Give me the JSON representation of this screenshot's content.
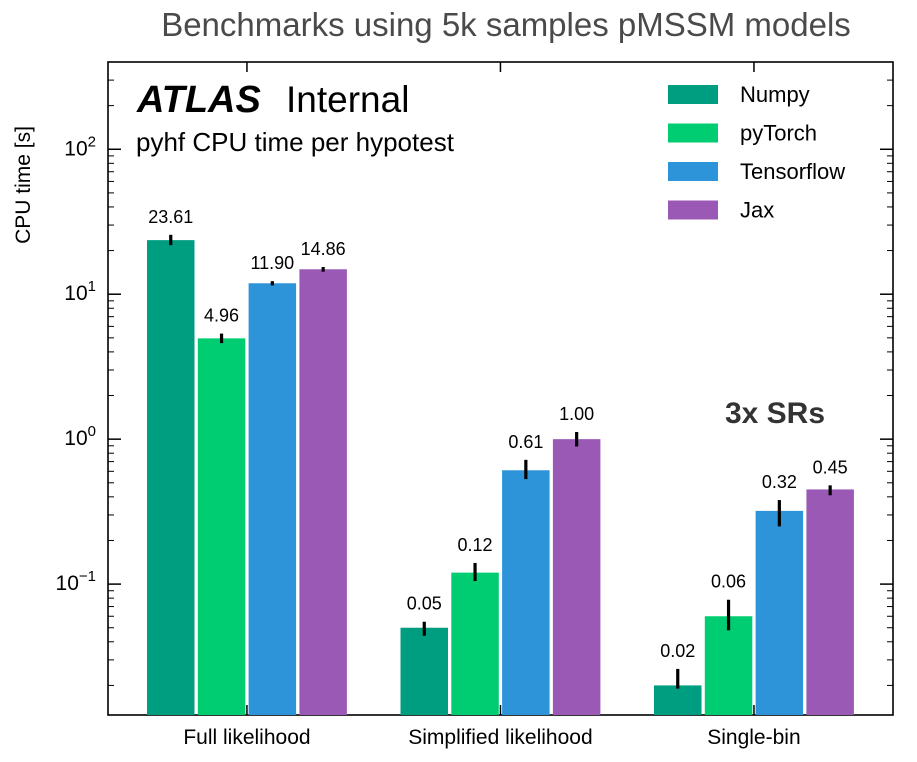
{
  "chart_data": {
    "type": "bar",
    "title": "Benchmarks using 5k samples pMSSM models",
    "ylabel": "CPU time [s]",
    "yscale": "log",
    "ylim": [
      0.0125,
      400
    ],
    "yticks": [
      {
        "value": 0.1,
        "base": "10",
        "exp": "−1"
      },
      {
        "value": 1,
        "base": "10",
        "exp": "0"
      },
      {
        "value": 10,
        "base": "10",
        "exp": "1"
      },
      {
        "value": 100,
        "base": "10",
        "exp": "2"
      }
    ],
    "categories": [
      "Full likelihood",
      "Simplified likelihood",
      "Single-bin"
    ],
    "series": [
      {
        "name": "Numpy",
        "color": "#009E80",
        "values": [
          23.61,
          0.05,
          0.02
        ],
        "labels": [
          "23.61",
          "0.05",
          "0.02"
        ],
        "err_lo": [
          21.8,
          0.044,
          0.019
        ],
        "err_hi": [
          25.7,
          0.055,
          0.026
        ]
      },
      {
        "name": "pyTorch",
        "color": "#00CC72",
        "values": [
          4.96,
          0.12,
          0.06
        ],
        "labels": [
          "4.96",
          "0.12",
          "0.06"
        ],
        "err_lo": [
          4.6,
          0.105,
          0.048
        ],
        "err_hi": [
          5.35,
          0.14,
          0.078
        ]
      },
      {
        "name": "Tensorflow",
        "color": "#2E94DA",
        "values": [
          11.9,
          0.61,
          0.32
        ],
        "labels": [
          "11.90",
          "0.61",
          "0.32"
        ],
        "err_lo": [
          11.5,
          0.53,
          0.25
        ],
        "err_hi": [
          12.3,
          0.72,
          0.38
        ]
      },
      {
        "name": "Jax",
        "color": "#9B59B6",
        "values": [
          14.86,
          1.0,
          0.45
        ],
        "labels": [
          "14.86",
          "1.00",
          "0.45"
        ],
        "err_lo": [
          14.3,
          0.89,
          0.41
        ],
        "err_hi": [
          15.4,
          1.12,
          0.48
        ]
      }
    ],
    "legend_position": "top-right",
    "grid": false
  },
  "annotations": {
    "experiment": "ATLAS",
    "status": "Internal",
    "subtitle": "pyhf CPU time per hypotest",
    "region_note": "3x SRs"
  }
}
